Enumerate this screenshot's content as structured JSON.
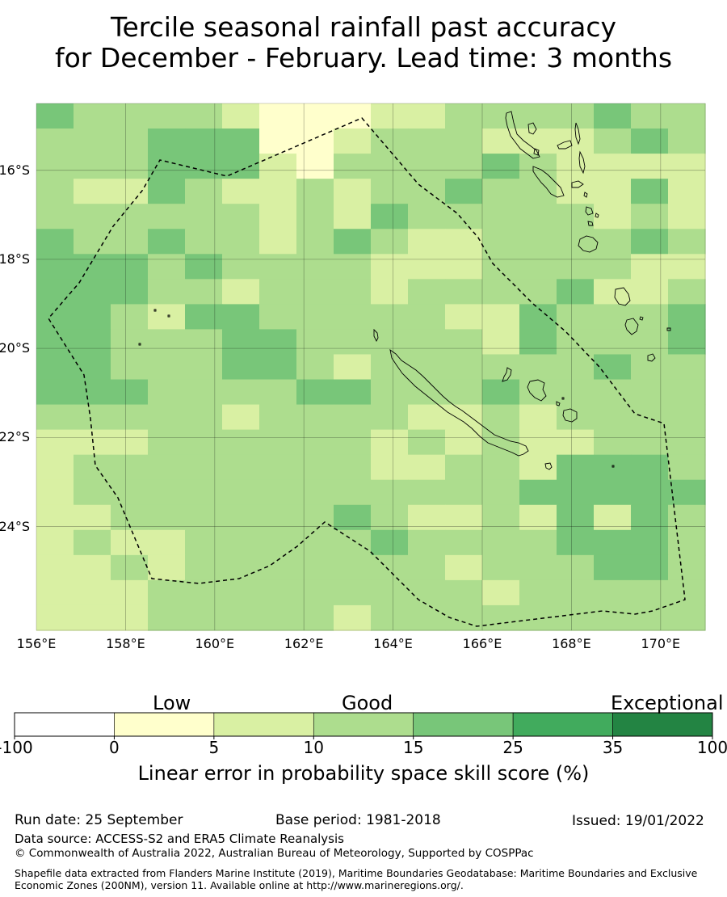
{
  "title": {
    "line1": "Tercile seasonal rainfall past accuracy",
    "line2": "for December - February. Lead time: 3 months"
  },
  "map": {
    "lon_range": [
      156.0,
      171.0
    ],
    "lat_range": [
      -14.5,
      -26.33
    ],
    "x_ticks": [
      {
        "value": 156,
        "label": "156°E"
      },
      {
        "value": 158,
        "label": "158°E"
      },
      {
        "value": 160,
        "label": "160°E"
      },
      {
        "value": 162,
        "label": "162°E"
      },
      {
        "value": 164,
        "label": "164°E"
      },
      {
        "value": 166,
        "label": "166°E"
      },
      {
        "value": 168,
        "label": "168°E"
      },
      {
        "value": 170,
        "label": "170°E"
      }
    ],
    "y_ticks": [
      {
        "value": -16,
        "label": "16°S"
      },
      {
        "value": -18,
        "label": "18°S"
      },
      {
        "value": -20,
        "label": "20°S"
      },
      {
        "value": -22,
        "label": "22°S"
      },
      {
        "value": -24,
        "label": "24°S"
      }
    ],
    "grid_cols": 18,
    "grid_rows": 21,
    "category_colors": [
      "#ffffff",
      "#ffffcc",
      "#d9f0a3",
      "#addd8e",
      "#78c679",
      "#41ab5d",
      "#238443"
    ],
    "grid_categories": [
      "433332111223333433",
      "333444112333222343",
      "333444213333432222",
      "322432232334332242",
      "333333232433333232",
      "433433234322333343",
      "444343333222333322",
      "444332333233334223",
      "443244333332243334",
      "443334433333243334",
      "443334432333333433",
      "444333344333433333",
      "333332333322323333",
      "222333333232322333",
      "233333333223324443",
      "233333333333344444",
      "223333334322324243",
      "232233333433334443",
      "223233333332333443",
      "222333333333233333",
      "222333332333333333"
    ],
    "cities": []
  },
  "colorbar": {
    "category_labels": [
      "Low",
      "Good",
      "Exceptional"
    ],
    "ticks": [
      "-100",
      "0",
      "5",
      "10",
      "15",
      "25",
      "35",
      "100"
    ],
    "colors": [
      "#ffffff",
      "#ffffcc",
      "#d9f0a3",
      "#addd8e",
      "#78c679",
      "#41ab5d",
      "#238443"
    ],
    "axis_label": "Linear error in probability space skill score (%)"
  },
  "footer": {
    "run_date": "Run date: 25 September",
    "base_period": "Base period: 1981-2018",
    "issued": "Issued: 19/01/2022",
    "data_source": "Data source: ACCESS-S2 and ERA5 Climate Reanalysis",
    "copyright": "© Commonwealth of Australia 2022, Australian Bureau of Meteorology, Supported by COSPPac",
    "shapefile": "Shapefile data extracted from Flanders Marine Institute (2019), Maritime Boundaries Geodatabase: Maritime Boundaries and Exclusive Economic Zones (200NM), version 11. Available online at http://www.marineregions.org/."
  }
}
